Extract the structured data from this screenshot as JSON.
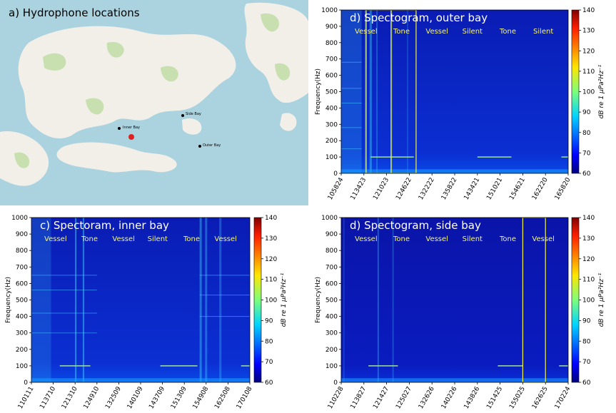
{
  "map": {
    "title": "a) Hydrophone locations",
    "labels": [
      "Inner Bay",
      "Side Bay",
      "Outer Bay"
    ],
    "colors": {
      "water": "#aad3df",
      "land": "#f2efe9",
      "green": "#c8dfb0"
    }
  },
  "colorbar": {
    "label": "dB re 1 μPa²Hz⁻¹",
    "min": 60,
    "max": 140,
    "ticks": [
      60,
      70,
      80,
      90,
      100,
      110,
      120,
      130,
      140
    ]
  },
  "chart_data": [
    {
      "id": "outer",
      "type": "heatmap",
      "title": "d) Spectogram, outer bay",
      "ylabel": "Frequency(Hz)",
      "ylim": [
        0,
        1000
      ],
      "y_ticks": [
        0,
        100,
        200,
        300,
        400,
        500,
        600,
        700,
        800,
        900,
        1000
      ],
      "x_ticks": [
        "105824",
        "113423",
        "121023",
        "124622",
        "132222",
        "135822",
        "143421",
        "151021",
        "154621",
        "162220",
        "165820"
      ],
      "segments": [
        "Vessel",
        "Tone",
        "Vessel",
        "Silent",
        "Tone",
        "Silent"
      ],
      "highlight_boxes_x": [
        [
          1.1,
          2.2
        ],
        [
          2.2,
          3.3
        ]
      ]
    },
    {
      "id": "inner",
      "type": "heatmap",
      "title": "c) Spectoram, inner bay",
      "ylabel": "Frequency(Hz)",
      "ylim": [
        0,
        1000
      ],
      "y_ticks": [
        0,
        100,
        200,
        300,
        400,
        500,
        600,
        700,
        800,
        900,
        1000
      ],
      "x_ticks": [
        "110111",
        "113710",
        "121310",
        "124910",
        "132509",
        "140109",
        "143709",
        "151309",
        "154908",
        "162508",
        "170108"
      ],
      "segments": [
        "Vessel",
        "Tone",
        "Vessel",
        "Silent",
        "Tone",
        "Vessel"
      ],
      "highlight_boxes_x": []
    },
    {
      "id": "side",
      "type": "heatmap",
      "title": "d) Spectogram, side bay",
      "ylabel": "Frequency(Hz)",
      "ylim": [
        0,
        1000
      ],
      "y_ticks": [
        0,
        100,
        200,
        300,
        400,
        500,
        600,
        700,
        800,
        900,
        1000
      ],
      "x_ticks": [
        "110228",
        "113827",
        "121427",
        "125027",
        "132626",
        "140226",
        "143826",
        "151425",
        "155025",
        "162625",
        "170224"
      ],
      "segments": [
        "Vessel",
        "Tone",
        "Vessel",
        "Silent",
        "Tone",
        "Vessel"
      ],
      "highlight_boxes_x": [
        [
          8.0,
          9.0
        ]
      ]
    }
  ]
}
